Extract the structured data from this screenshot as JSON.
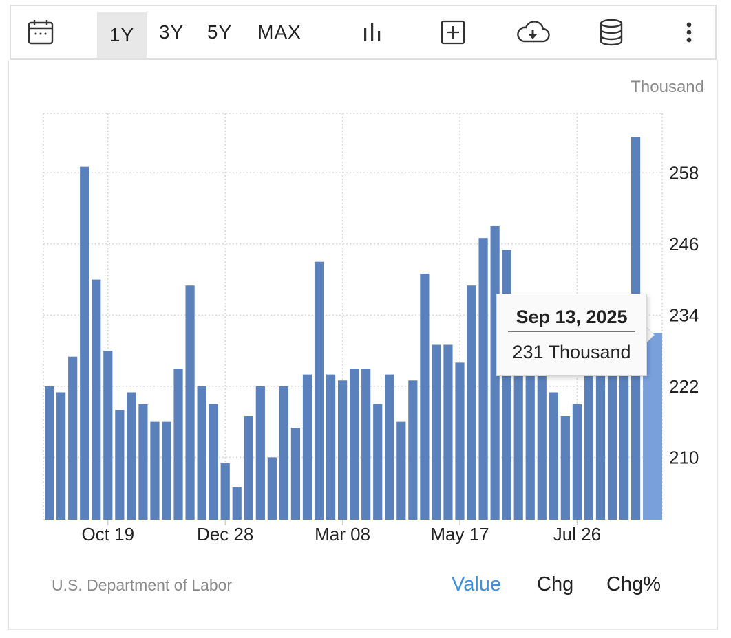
{
  "toolbar": {
    "ranges": [
      "1Y",
      "3Y",
      "5Y",
      "MAX"
    ],
    "active_range": "1Y",
    "icons": [
      "calendar-icon",
      "bar-chart-icon",
      "add-box-icon",
      "cloud-download-icon",
      "database-icon",
      "more-vertical-icon"
    ]
  },
  "chart_data": {
    "type": "bar",
    "unit_label": "Thousand",
    "x_tick_labels": [
      "Oct 19",
      "Dec 28",
      "Mar 08",
      "May 17",
      "Jul 26"
    ],
    "y_ticks": [
      210,
      222,
      234,
      246,
      258
    ],
    "ylim": [
      199.5,
      268
    ],
    "grid": true,
    "values": [
      222,
      221,
      227,
      259,
      240,
      228,
      218,
      221,
      219,
      216,
      216,
      225,
      239,
      222,
      219,
      209,
      205,
      217,
      222,
      210,
      222,
      215,
      224,
      243,
      224,
      223,
      225,
      225,
      219,
      224,
      216,
      223,
      241,
      229,
      229,
      226,
      239,
      247,
      249,
      245,
      235,
      232,
      224,
      221,
      217,
      219,
      228,
      231,
      231,
      231,
      264,
      231
    ],
    "colors": {
      "bar": "#5b81bd",
      "bar_highlight": "#7aa0dc",
      "grid": "#d9d9d9"
    }
  },
  "tooltip": {
    "date": "Sep 13, 2025",
    "value": "231 Thousand"
  },
  "footer": {
    "source": "U.S. Department of Labor",
    "views": [
      "Value",
      "Chg",
      "Chg%"
    ],
    "active_view": "Value"
  }
}
